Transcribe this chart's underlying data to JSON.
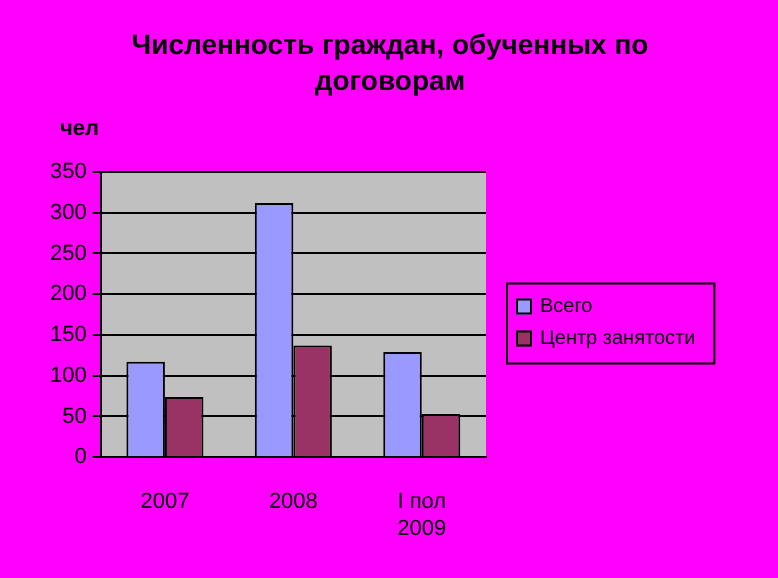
{
  "chart_data": {
    "type": "bar",
    "title": "Численность граждан, обученных по договорам",
    "ylabel": "чел",
    "categories": [
      "2007",
      "2008",
      "I пол 2009"
    ],
    "series": [
      {
        "name": "Всего",
        "color": "#9999ff",
        "values": [
          117,
          312,
          129
        ]
      },
      {
        "name": "Центр занятости",
        "color": "#993366",
        "values": [
          74,
          137,
          53
        ]
      }
    ],
    "ylim": [
      0,
      350
    ],
    "yticks": [
      0,
      50,
      100,
      150,
      200,
      250,
      300,
      350
    ],
    "grid": "y",
    "legend": "right"
  }
}
